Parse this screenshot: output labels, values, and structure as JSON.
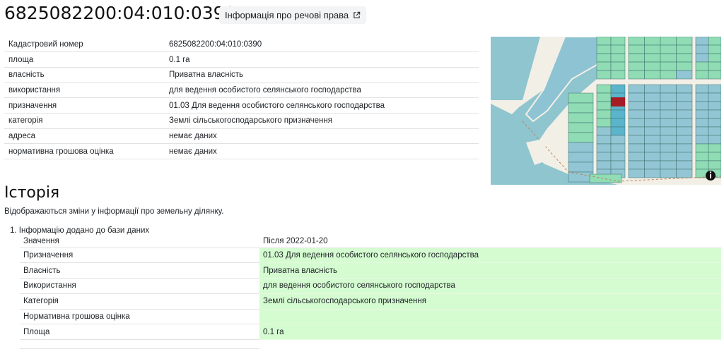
{
  "header": {
    "title": "6825082200:04:010:0390",
    "rights_button": "Інформація про речові права",
    "external_icon": "external-link-icon"
  },
  "info": [
    {
      "label": "Кадастровий номер",
      "value": "6825082200:04:010:0390"
    },
    {
      "label": "площа",
      "value": "0.1 га"
    },
    {
      "label": "власність",
      "value": "Приватна власність"
    },
    {
      "label": "використання",
      "value": "для ведення особистого селянського господарства"
    },
    {
      "label": "призначення",
      "value": "01.03 Для ведення особистого селянського господарства"
    },
    {
      "label": "категорія",
      "value": "Землі сільськогосподарського призначення"
    },
    {
      "label": "адреса",
      "value": "немає даних"
    },
    {
      "label": "нормативна грошова оцінка",
      "value": "немає даних"
    }
  ],
  "map": {
    "highlight_color": "#a51c24",
    "info_icon": "info-icon"
  },
  "history": {
    "title": "Історія",
    "description": "Відображаються зміни у інформації про земельну ділянку.",
    "items": [
      {
        "title": "Інформацію додано до бази даних",
        "header": {
          "label": "Значення",
          "value": "Після 2022-01-20"
        },
        "rows": [
          {
            "label": "Призначення",
            "value": "01.03 Для ведення особистого селянського господарства"
          },
          {
            "label": "Власність",
            "value": "Приватна власність"
          },
          {
            "label": "Використання",
            "value": "для ведення особистого селянського господарства"
          },
          {
            "label": "Категорія",
            "value": "Землі сільськогосподарського призначення"
          },
          {
            "label": "Нормативна грошова оцінка",
            "value": ""
          },
          {
            "label": "Площа",
            "value": "0.1 га"
          }
        ]
      }
    ]
  }
}
